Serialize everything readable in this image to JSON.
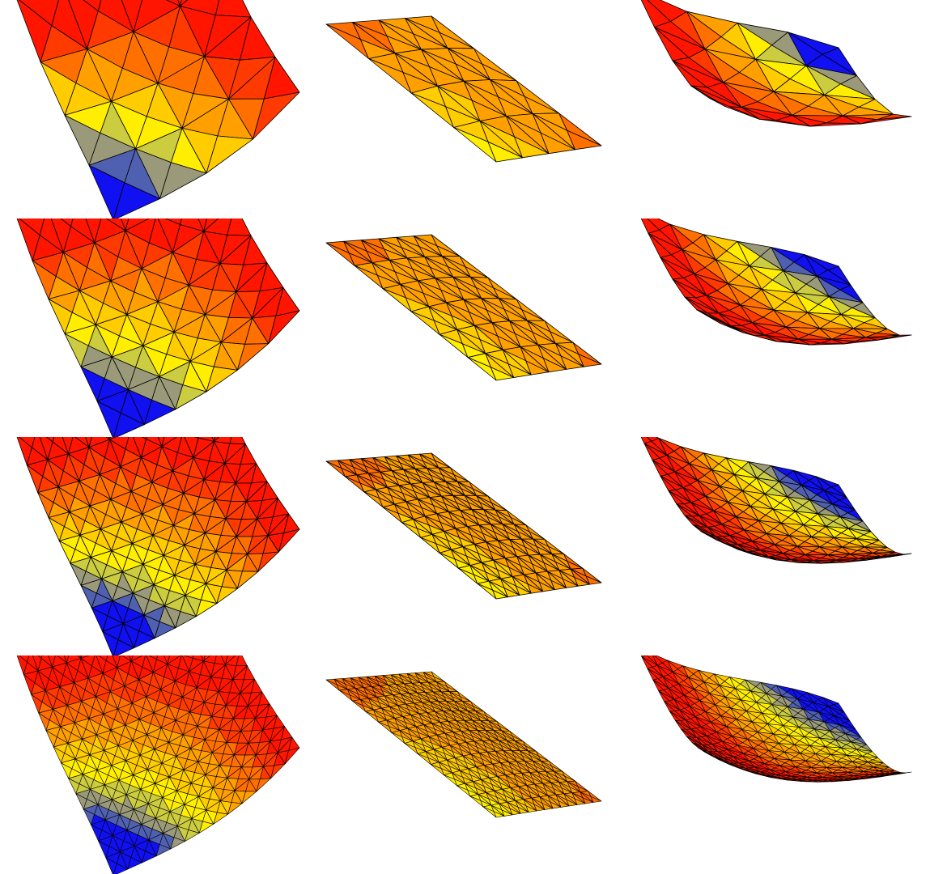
{
  "figure": {
    "rows": [
      {
        "level": 1,
        "panels": [
          {
            "surface": "saddle",
            "refinement": 1
          },
          {
            "surface": "flat",
            "refinement": 1
          },
          {
            "surface": "saddle-rotated",
            "refinement": 1
          }
        ]
      },
      {
        "level": 2,
        "panels": [
          {
            "surface": "saddle",
            "refinement": 2
          },
          {
            "surface": "flat",
            "refinement": 2
          },
          {
            "surface": "saddle-rotated",
            "refinement": 2
          }
        ]
      },
      {
        "level": 3,
        "panels": [
          {
            "surface": "saddle",
            "refinement": 3
          },
          {
            "surface": "flat",
            "refinement": 3
          },
          {
            "surface": "saddle-rotated",
            "refinement": 3
          }
        ]
      },
      {
        "level": 4,
        "panels": [
          {
            "surface": "saddle",
            "refinement": 4
          },
          {
            "surface": "flat",
            "refinement": 4
          },
          {
            "surface": "saddle-rotated",
            "refinement": 4
          }
        ]
      }
    ],
    "colormap": [
      "#1010f0",
      "#5060b0",
      "#9a9a7a",
      "#cccc40",
      "#ffee00",
      "#ffcc00",
      "#ffa000",
      "#ff7000",
      "#ff3a00",
      "#ff1500"
    ],
    "edge_color": "#000000"
  }
}
